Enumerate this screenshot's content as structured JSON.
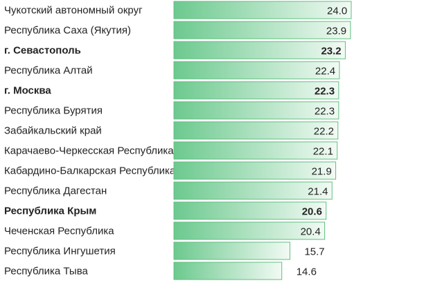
{
  "chart_data": {
    "type": "bar",
    "orientation": "horizontal",
    "title": "",
    "xlabel": "",
    "ylabel": "",
    "grid": false,
    "legend": "none",
    "xlim": [
      0,
      24.0
    ],
    "colors": {
      "bar_start": "#6cc98e",
      "bar_end": "#f2faf4",
      "bar_border": "#5fbf80",
      "text": "#222222"
    },
    "categories": [
      "Чукотский автономный округ",
      "Республика Саха (Якутия)",
      "г. Севастополь",
      "Республика Алтай",
      "г. Москва",
      "Республика Бурятия",
      "Забайкальский край",
      "Карачаево-Черкесская Республика",
      "Кабардино-Балкарская Республика",
      "Республика Дагестан",
      "Республика Крым",
      "Чеченская Республика",
      "Республика Ингушетия",
      "Республика Тыва"
    ],
    "values": [
      24.0,
      23.9,
      23.2,
      22.4,
      22.3,
      22.3,
      22.2,
      22.1,
      21.9,
      21.4,
      20.6,
      20.4,
      15.7,
      14.6
    ],
    "value_labels": [
      "24.0",
      "23.9",
      "23.2",
      "22.4",
      "22.3",
      "22.3",
      "22.2",
      "22.1",
      "21.9",
      "21.4",
      "20.6",
      "20.4",
      "15.7",
      "14.6"
    ],
    "highlighted": [
      false,
      false,
      true,
      false,
      true,
      false,
      false,
      false,
      false,
      false,
      true,
      false,
      false,
      false
    ]
  }
}
